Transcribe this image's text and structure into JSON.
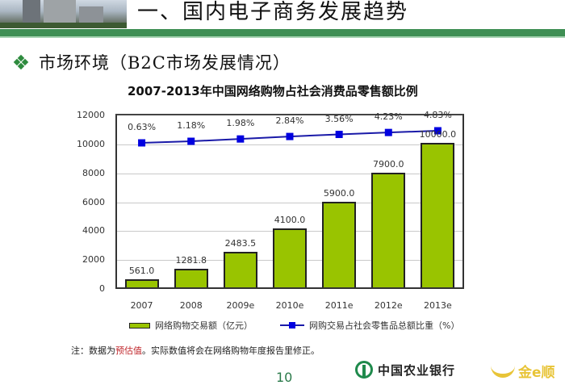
{
  "slide": {
    "title": "一、国内电子商务发展趋势",
    "bullet": "市场环境（B2C市场发展情况）",
    "note_prefix": "注：数据为",
    "note_highlight": "预估值",
    "note_suffix": "。实际数值将会在网络购物年度报告里修正。",
    "page_number": "10",
    "footer_bank": "中国农业银行",
    "footer_brand": "金e顺"
  },
  "colors": {
    "accent_green": "#3f8f54",
    "bar_fill": "#99c400",
    "line_color": "#1a1aa8",
    "marker_color": "#0000e0",
    "highlight_red": "#c0282d"
  },
  "chart_data": {
    "type": "bar",
    "title": "2007-2013年中国网络购物占社会消费品零售额比例",
    "categories": [
      "2007",
      "2008",
      "2009e",
      "2010e",
      "2011e",
      "2012e",
      "2013e"
    ],
    "series": [
      {
        "name": "网络购物交易额（亿元）",
        "type": "bar",
        "values": [
          561.0,
          1281.8,
          2483.5,
          4100.0,
          5900.0,
          7900.0,
          10000.0
        ],
        "labels": [
          "561.0",
          "1281.8",
          "2483.5",
          "4100.0",
          "5900.0",
          "7900.0",
          "10000.0"
        ]
      },
      {
        "name": "网购交易占社会零售品总额比重（%）",
        "type": "line",
        "values": [
          0.63,
          1.18,
          1.98,
          2.84,
          3.56,
          4.23,
          4.83
        ],
        "labels": [
          "0.63%",
          "1.18%",
          "1.98%",
          "2.84%",
          "3.56%",
          "4.23%",
          "4.83%"
        ]
      }
    ],
    "xlabel": "",
    "ylabel": "",
    "ylim": [
      0,
      12000
    ],
    "yticks": [
      "0",
      "2000",
      "4000",
      "6000",
      "8000",
      "10000",
      "12000"
    ],
    "grid": true,
    "legend_position": "bottom"
  }
}
